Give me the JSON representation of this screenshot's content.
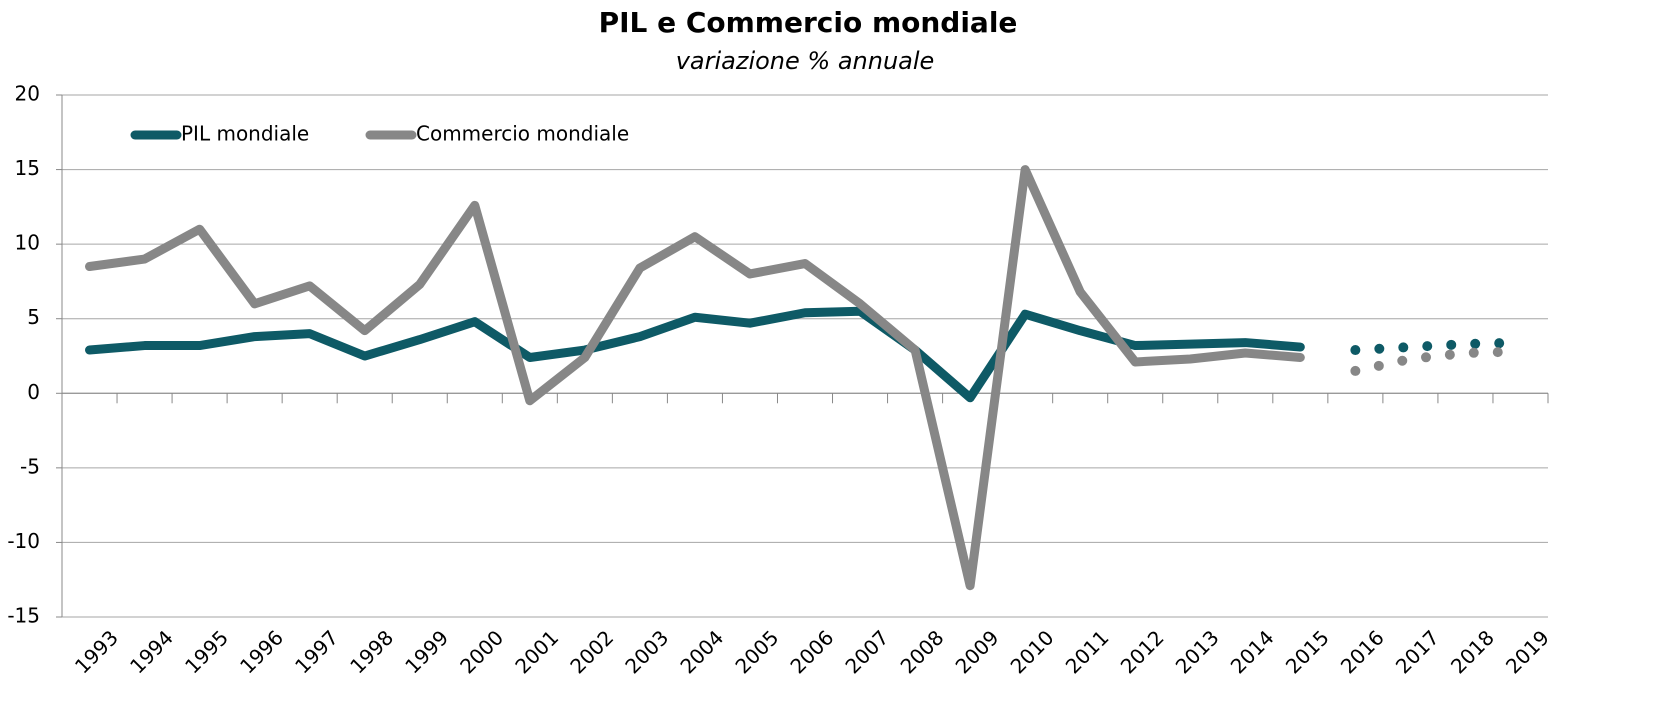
{
  "chart_data": {
    "type": "line",
    "title": "PIL e Commercio mondiale",
    "subtitle": "variazione % annuale",
    "categories": [
      "1993",
      "1994",
      "1995",
      "1996",
      "1997",
      "1998",
      "1999",
      "2000",
      "2001",
      "2002",
      "2003",
      "2004",
      "2005",
      "2006",
      "2007",
      "2008",
      "2009",
      "2010",
      "2011",
      "2012",
      "2013",
      "2014",
      "2015",
      "2016",
      "2017",
      "2018",
      "2019"
    ],
    "series": [
      {
        "name": "PIL mondiale",
        "color": "#0e5a66",
        "values": [
          2.9,
          3.2,
          3.2,
          3.8,
          4.0,
          2.5,
          3.6,
          4.8,
          2.4,
          2.9,
          3.8,
          5.1,
          4.7,
          5.4,
          5.5,
          2.9,
          -0.3,
          5.3,
          4.2,
          3.2,
          3.3,
          3.4,
          3.1,
          2.9,
          3.1,
          3.3,
          3.4
        ]
      },
      {
        "name": "Commercio mondiale",
        "color": "#878787",
        "values": [
          8.5,
          9.0,
          11.0,
          6.0,
          7.2,
          4.2,
          7.3,
          12.6,
          -0.5,
          2.4,
          8.4,
          10.5,
          8.0,
          8.7,
          6.0,
          2.9,
          -12.9,
          15.0,
          6.8,
          2.1,
          2.3,
          2.7,
          2.4,
          1.5,
          2.3,
          2.7,
          2.8
        ]
      }
    ],
    "dotted_from": "2015",
    "ylim": [
      -15,
      20
    ],
    "yticks": [
      -15,
      -10,
      -5,
      0,
      5,
      10,
      15,
      20
    ],
    "grid": true,
    "legend": "top-left"
  }
}
